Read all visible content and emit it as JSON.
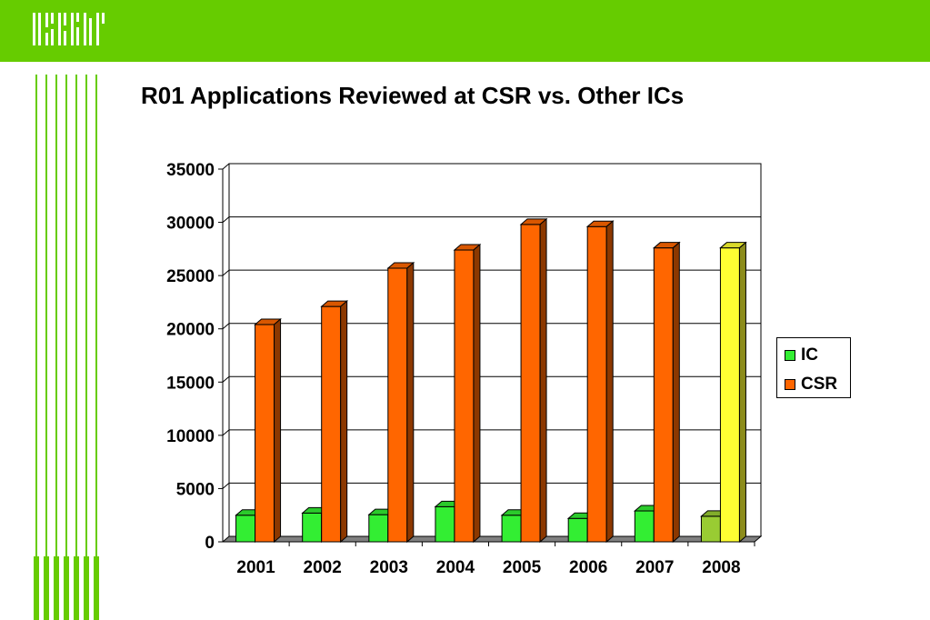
{
  "header": {
    "logo_text": "CSR",
    "bg_color": "#66cc00"
  },
  "slide": {
    "title": "R01 Applications Reviewed at CSR vs. Other ICs"
  },
  "chart_data": {
    "type": "bar",
    "title": "",
    "xlabel": "",
    "ylabel": "",
    "categories": [
      "2001",
      "2002",
      "2003",
      "2004",
      "2005",
      "2006",
      "2007",
      "2008"
    ],
    "series": [
      {
        "name": "IC",
        "values": [
          2500,
          2700,
          2550,
          3300,
          2500,
          2200,
          2900,
          2400
        ],
        "color": "#33ee33",
        "highlight_color": "#99cc33"
      },
      {
        "name": "CSR",
        "values": [
          20400,
          22100,
          25700,
          27400,
          29800,
          29600,
          27600,
          27600
        ],
        "color": "#ff6600",
        "highlight_color": "#ffff33"
      }
    ],
    "highlight_category": "2008",
    "ylim": [
      0,
      35000
    ],
    "yticks": [
      0,
      5000,
      10000,
      15000,
      20000,
      25000,
      30000,
      35000
    ],
    "grid": true,
    "legend_position": "right"
  }
}
